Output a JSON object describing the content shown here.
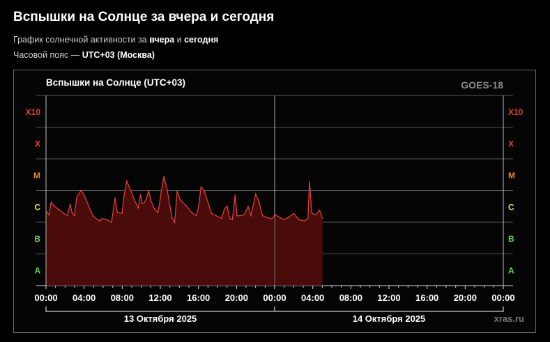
{
  "header": {
    "title": "Вспышки на Солнце за вчера и сегодня",
    "subtitle_prefix": "График солнечной активности за ",
    "subtitle_b1": "вчера",
    "subtitle_mid": " и ",
    "subtitle_b2": "сегодня",
    "tz_prefix": "Часовой пояс — ",
    "tz_value": "UTC+03 (Москва)"
  },
  "chart_data": {
    "type": "area",
    "title": "Вспышки на Солнце (UTC+03)",
    "satellite": "GOES-18",
    "watermark": "xras.ru",
    "y_scale": "log",
    "y_unit_note": "",
    "ylim": [
      1e-08,
      0.01
    ],
    "y_classes": [
      {
        "label": "A",
        "flux": 1e-08,
        "color": "#5fd25f"
      },
      {
        "label": "B",
        "flux": 1e-07,
        "color": "#5fd25f"
      },
      {
        "label": "C",
        "flux": 1e-06,
        "color": "#e6e65a"
      },
      {
        "label": "M",
        "flux": 1e-05,
        "color": "#e8873a"
      },
      {
        "label": "X",
        "flux": 0.0001,
        "color": "#e0402f"
      },
      {
        "label": "X10",
        "flux": 0.001,
        "color": "#e0402f"
      }
    ],
    "xlim_hours": [
      0,
      48
    ],
    "x_tick_labels": [
      "00:00",
      "04:00",
      "08:00",
      "12:00",
      "16:00",
      "20:00",
      "00:00",
      "04:00",
      "08:00",
      "12:00",
      "16:00",
      "20:00",
      "00:00"
    ],
    "dates": [
      "13 Октября 2025",
      "14 Октября 2025"
    ],
    "grid": true,
    "colors": {
      "line": "#e8413a",
      "fill": "#4a0c0a",
      "grid": "#555555"
    },
    "series": {
      "x_hours": [
        0.05,
        0.29,
        0.54,
        0.78,
        1.02,
        1.27,
        1.76,
        2.24,
        2.54,
        2.73,
        2.98,
        3.22,
        3.66,
        3.95,
        4.44,
        4.93,
        5.41,
        5.66,
        5.9,
        6.39,
        6.88,
        7.24,
        7.49,
        7.98,
        8.15,
        8.47,
        8.83,
        9.32,
        9.68,
        9.93,
        10.1,
        10.29,
        10.54,
        10.78,
        11.02,
        11.39,
        11.76,
        12.05,
        12.37,
        12.73,
        13.22,
        13.51,
        13.76,
        14.07,
        14.68,
        15.29,
        15.78,
        16.02,
        16.27,
        16.63,
        17.0,
        17.37,
        17.85,
        18.46,
        18.71,
        19.02,
        19.27,
        19.56,
        19.85,
        20.05,
        20.41,
        20.78,
        21.22,
        21.51,
        22.0,
        22.37,
        22.73,
        23.22,
        23.71,
        24.07,
        24.56,
        24.93,
        25.41,
        26.02,
        26.51,
        27.12,
        27.49,
        27.66,
        27.9,
        28.34,
        28.71,
        29.02
      ],
      "flux": [
        2.2e-06,
        1.7e-06,
        4.3e-06,
        3.4e-06,
        3e-06,
        2.6e-06,
        2e-06,
        1.6e-06,
        3.7e-06,
        2e-06,
        1.6e-06,
        6.1e-06,
        1e-05,
        7.8e-06,
        3.4e-06,
        1.6e-06,
        1.2e-06,
        1.1e-06,
        1.3e-06,
        1.2e-06,
        9.8e-07,
        5.9e-06,
        2e-06,
        1.9e-06,
        5.6e-06,
        2e-05,
        1.1e-05,
        4.7e-06,
        2.8e-06,
        7.5e-06,
        3.8e-06,
        4e-06,
        5.6e-06,
        1e-05,
        4.7e-06,
        2.6e-06,
        2e-06,
        7.2e-06,
        2.8e-05,
        1e-05,
        1.4e-06,
        9.8e-07,
        9.8e-06,
        5.1e-06,
        3.4e-06,
        2e-06,
        1.6e-06,
        3.1e-06,
        1.3e-05,
        9.3e-06,
        4.3e-06,
        1.9e-06,
        1.6e-06,
        1.3e-06,
        2.6e-06,
        3.2e-06,
        1.3e-06,
        1.2e-06,
        7.2e-06,
        1.6e-06,
        1.6e-06,
        1.7e-06,
        3.1e-06,
        1.6e-06,
        7.8e-06,
        4.3e-06,
        1.6e-06,
        1.4e-06,
        1.3e-06,
        1.7e-06,
        1.4e-06,
        1.2e-06,
        1.4e-06,
        1.9e-06,
        1.2e-06,
        1.1e-06,
        1.3e-06,
        2e-05,
        1.9e-06,
        1.7e-06,
        2.4e-06,
        1.3e-06
      ]
    }
  }
}
